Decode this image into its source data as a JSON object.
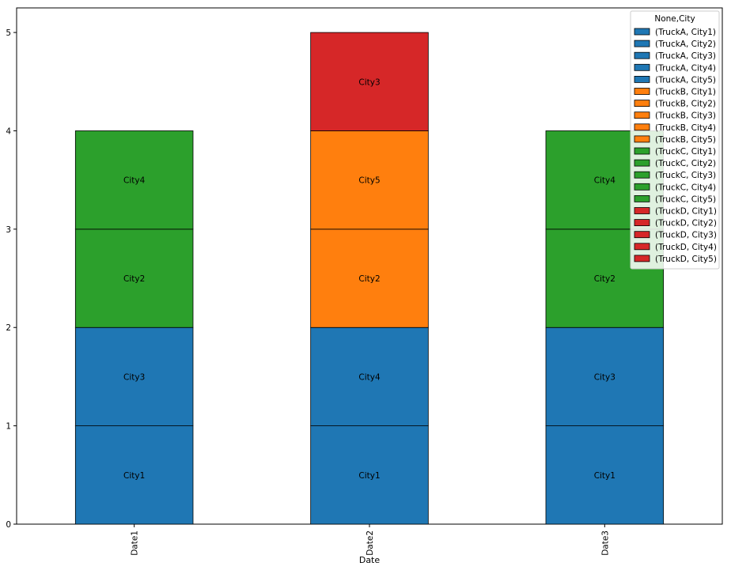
{
  "chart_data": {
    "type": "bar",
    "stacked": true,
    "title": "",
    "xlabel": "Date",
    "ylabel": "",
    "ylim": [
      0,
      5.25
    ],
    "yticks": [
      0,
      1,
      2,
      3,
      4,
      5
    ],
    "categories": [
      "Date1",
      "Date2",
      "Date3"
    ],
    "stacks": [
      [
        {
          "label": "City1",
          "series": "(TruckA, City1)",
          "value": 1
        },
        {
          "label": "City3",
          "series": "(TruckA, City3)",
          "value": 1
        },
        {
          "label": "City2",
          "series": "(TruckC, City2)",
          "value": 1
        },
        {
          "label": "City4",
          "series": "(TruckC, City4)",
          "value": 1
        }
      ],
      [
        {
          "label": "City1",
          "series": "(TruckA, City1)",
          "value": 1
        },
        {
          "label": "City4",
          "series": "(TruckA, City4)",
          "value": 1
        },
        {
          "label": "City2",
          "series": "(TruckB, City2)",
          "value": 1
        },
        {
          "label": "City5",
          "series": "(TruckB, City5)",
          "value": 1
        },
        {
          "label": "City3",
          "series": "(TruckD, City3)",
          "value": 1
        }
      ],
      [
        {
          "label": "City1",
          "series": "(TruckA, City1)",
          "value": 1
        },
        {
          "label": "City3",
          "series": "(TruckA, City3)",
          "value": 1
        },
        {
          "label": "City2",
          "series": "(TruckC, City2)",
          "value": 1
        },
        {
          "label": "City4",
          "series": "(TruckC, City4)",
          "value": 1
        }
      ]
    ],
    "legend": {
      "title": "None,City",
      "position": "top-right",
      "entries": [
        {
          "label": "(TruckA, City1)",
          "color": "#1f77b4"
        },
        {
          "label": "(TruckA, City2)",
          "color": "#1f77b4"
        },
        {
          "label": "(TruckA, City3)",
          "color": "#1f77b4"
        },
        {
          "label": "(TruckA, City4)",
          "color": "#1f77b4"
        },
        {
          "label": "(TruckA, City5)",
          "color": "#1f77b4"
        },
        {
          "label": "(TruckB, City1)",
          "color": "#ff7f0e"
        },
        {
          "label": "(TruckB, City2)",
          "color": "#ff7f0e"
        },
        {
          "label": "(TruckB, City3)",
          "color": "#ff7f0e"
        },
        {
          "label": "(TruckB, City4)",
          "color": "#ff7f0e"
        },
        {
          "label": "(TruckB, City5)",
          "color": "#ff7f0e"
        },
        {
          "label": "(TruckC, City1)",
          "color": "#2ca02c"
        },
        {
          "label": "(TruckC, City2)",
          "color": "#2ca02c"
        },
        {
          "label": "(TruckC, City3)",
          "color": "#2ca02c"
        },
        {
          "label": "(TruckC, City4)",
          "color": "#2ca02c"
        },
        {
          "label": "(TruckC, City5)",
          "color": "#2ca02c"
        },
        {
          "label": "(TruckD, City1)",
          "color": "#d62728"
        },
        {
          "label": "(TruckD, City2)",
          "color": "#d62728"
        },
        {
          "label": "(TruckD, City3)",
          "color": "#d62728"
        },
        {
          "label": "(TruckD, City4)",
          "color": "#d62728"
        },
        {
          "label": "(TruckD, City5)",
          "color": "#d62728"
        }
      ]
    }
  }
}
